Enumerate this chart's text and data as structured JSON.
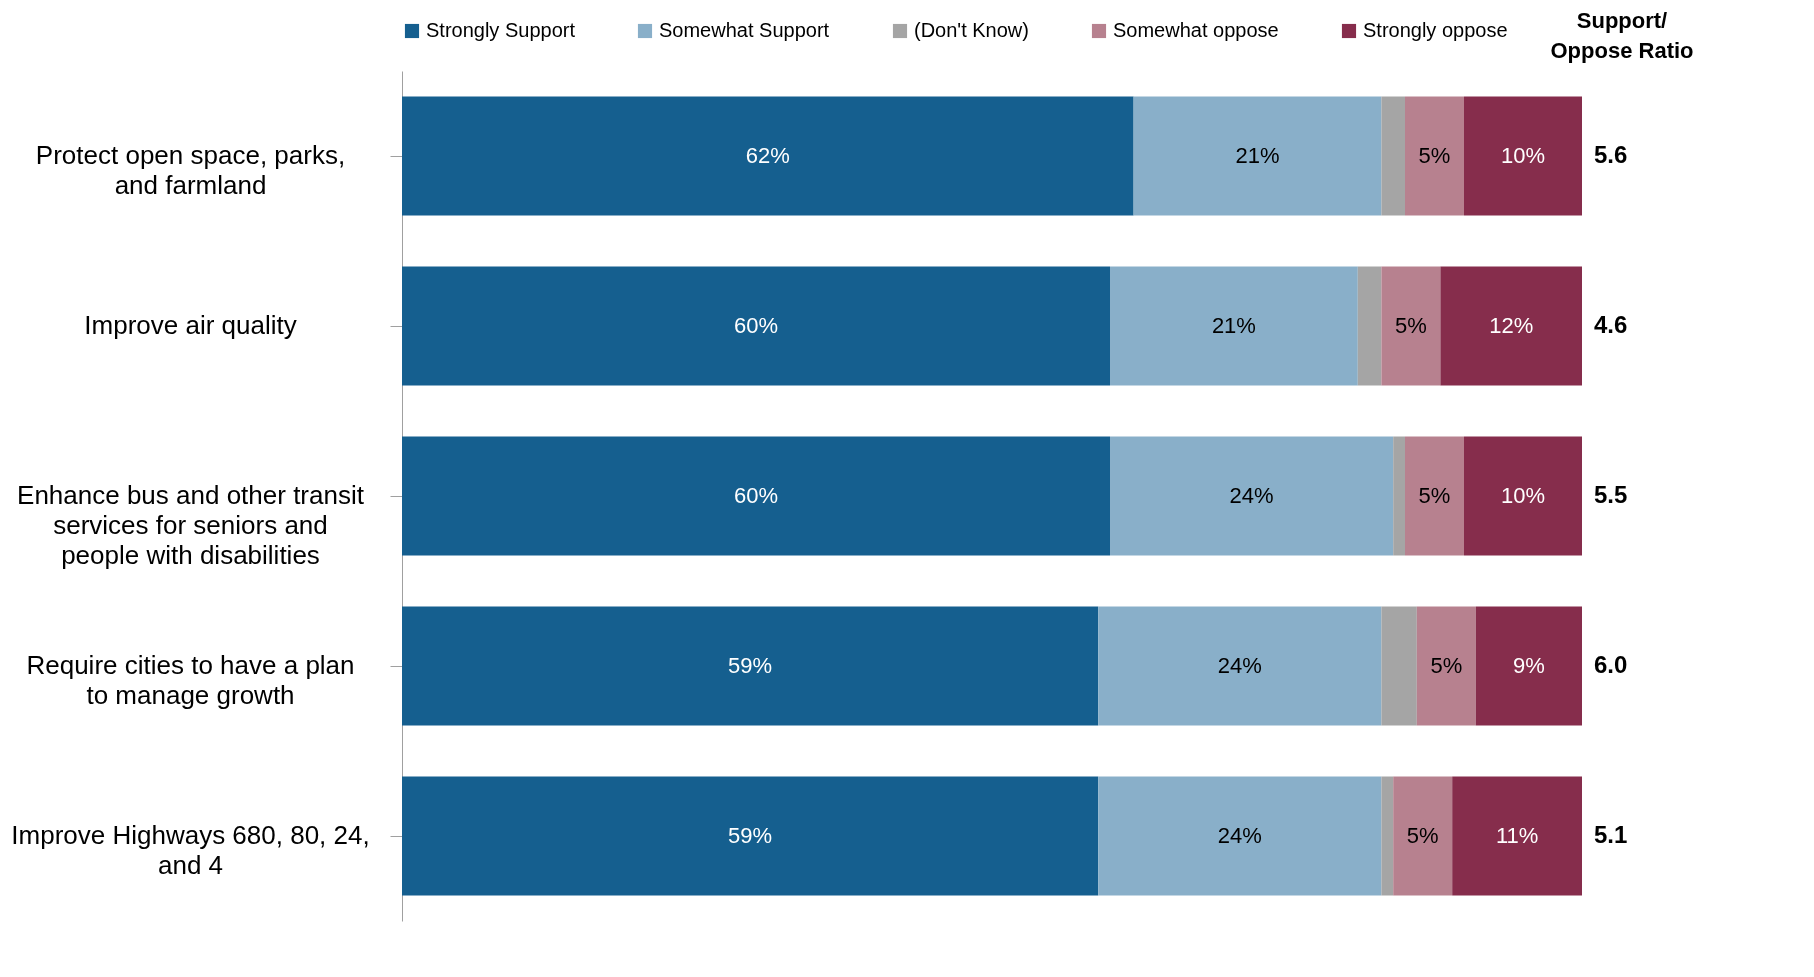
{
  "chart_data": {
    "type": "bar",
    "orientation": "horizontal",
    "stacked": true,
    "legend": "top",
    "categories": [
      "Protect open space, parks, and farmland",
      "Improve air quality",
      "Enhance bus and other transit services for seniors and people with disabilities",
      "Require cities to have a plan to manage growth",
      "Improve Highways 680, 80, 24, and 4"
    ],
    "series": [
      {
        "name": "Strongly Support",
        "color": "#155f8f",
        "values": [
          62,
          60,
          60,
          59,
          59
        ],
        "value_labels": [
          "62%",
          "60%",
          "60%",
          "59%",
          "59%"
        ]
      },
      {
        "name": "Somewhat Support",
        "color": "#89afc9",
        "values": [
          21,
          21,
          24,
          24,
          24
        ],
        "value_labels": [
          "21%",
          "21%",
          "24%",
          "24%",
          "24%"
        ]
      },
      {
        "name": "(Don't Know)",
        "color": "#a5a5a5",
        "values": [
          2,
          2,
          1,
          3,
          1
        ],
        "value_labels": [
          null,
          null,
          null,
          null,
          null
        ]
      },
      {
        "name": "Somewhat oppose",
        "color": "#b7818f",
        "values": [
          5,
          5,
          5,
          5,
          5
        ],
        "value_labels": [
          "5%",
          "5%",
          "5%",
          "5%",
          "5%"
        ]
      },
      {
        "name": "Strongly oppose",
        "color": "#862d4c",
        "values": [
          10,
          12,
          10,
          9,
          11
        ],
        "value_labels": [
          "10%",
          "12%",
          "10%",
          "9%",
          "11%"
        ]
      }
    ],
    "annotations": [
      "Support/ Oppose Ratio",
      "5.6",
      "4.6",
      "5.5",
      "6.0",
      "5.1"
    ]
  }
}
